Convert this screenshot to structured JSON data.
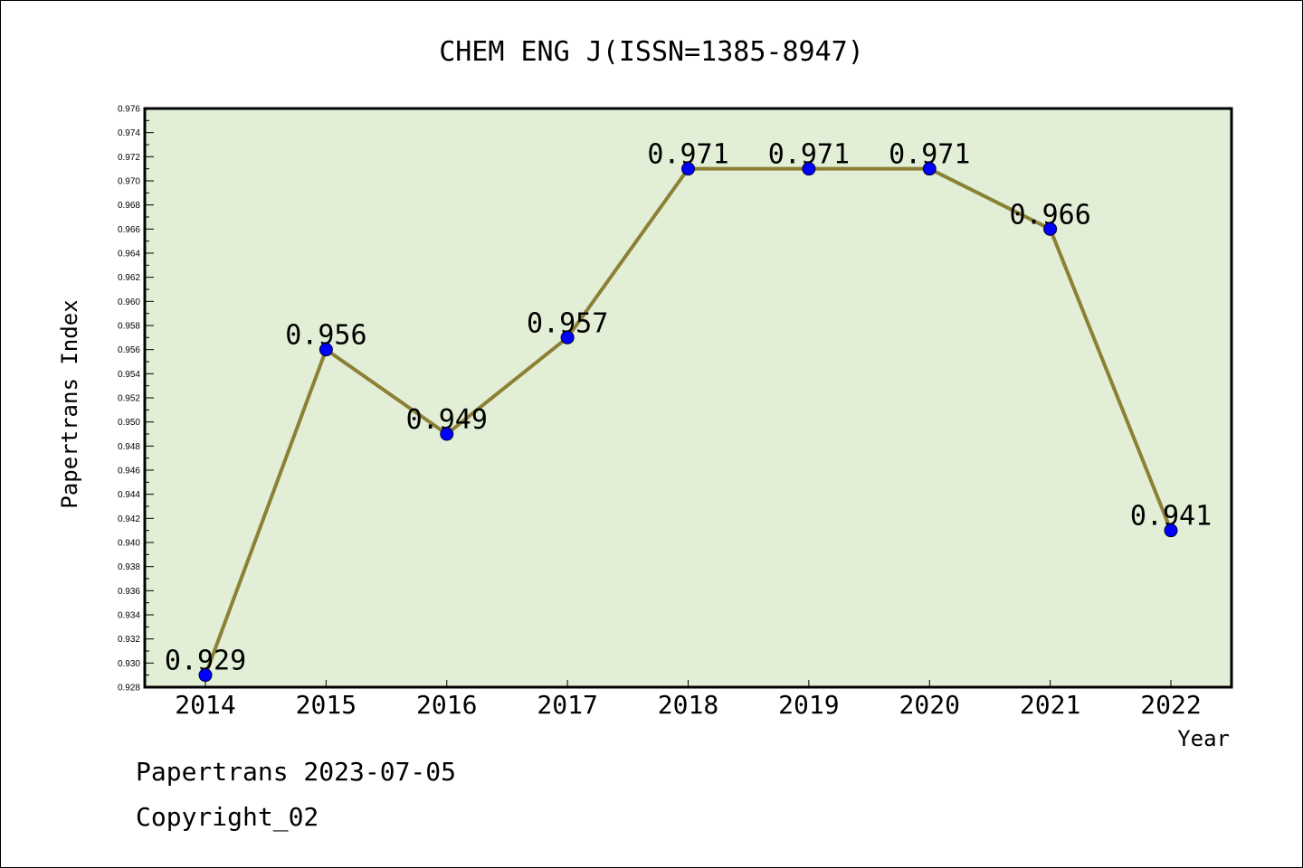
{
  "footer": {
    "line1": "Papertrans 2023-07-05",
    "line2": "Copyright_02"
  },
  "chart_data": {
    "type": "line",
    "title": "CHEM ENG J(ISSN=1385-8947)",
    "xlabel": "Year",
    "ylabel": "Papertrans Index",
    "categories": [
      "2014",
      "2015",
      "2016",
      "2017",
      "2018",
      "2019",
      "2020",
      "2021",
      "2022"
    ],
    "series": [
      {
        "values": [
          0.929,
          0.956,
          0.949,
          0.957,
          0.971,
          0.971,
          0.971,
          0.966,
          0.941
        ],
        "labels": [
          "0.929",
          "0.956",
          "0.949",
          "0.957",
          "0.971",
          "0.971",
          "0.971",
          "0.966",
          "0.941"
        ]
      }
    ],
    "ylim": [
      0.928,
      0.976
    ],
    "ytick_step": 0.002,
    "grid": false,
    "legend": "none",
    "colors": {
      "plot_background": "#e2efd6",
      "line": "#8b8036",
      "marker": "#0000ff"
    }
  }
}
